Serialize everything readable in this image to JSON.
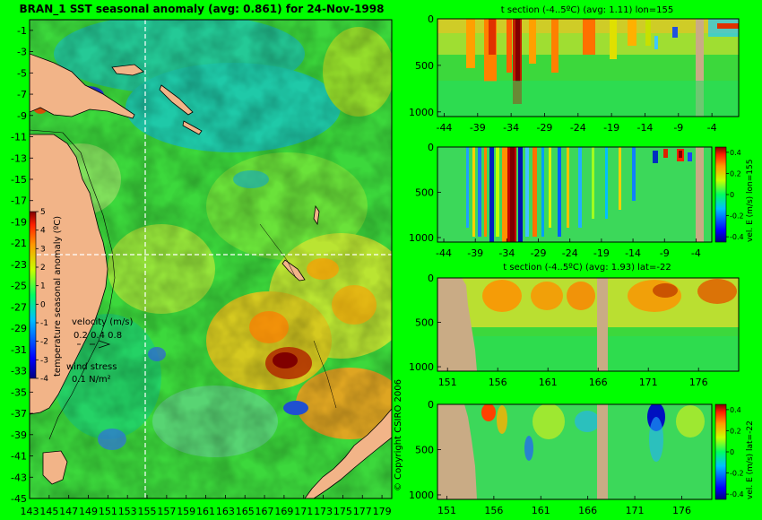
{
  "colors": {
    "page_bg": "#00ff00",
    "land": "#f2b488",
    "section_land": "#c9ab85",
    "ocean_warm": "#ff9900",
    "ocean_cool": "#0077ff",
    "text": "#000000"
  },
  "map": {
    "title": "BRAN_1 SST seasonal anomaly (avg: 0.861) for 24-Nov-1998",
    "lat_ticks": [
      "-1",
      "-3",
      "-5",
      "-7",
      "-9",
      "-11",
      "-13",
      "-15",
      "-17",
      "-19",
      "-21",
      "-23",
      "-25",
      "-27",
      "-29",
      "-31",
      "-33",
      "-35",
      "-37",
      "-39",
      "-41",
      "-43",
      "-45"
    ],
    "lon_ticks": [
      "143",
      "145",
      "147",
      "149",
      "151",
      "153",
      "155",
      "157",
      "159",
      "161",
      "163",
      "165",
      "167",
      "169",
      "171",
      "173",
      "175",
      "177",
      "179"
    ],
    "colorbar_label": "temperature seasonal anomaly (ºC)",
    "colorbar_ticks": [
      "5",
      "4",
      "3",
      "2",
      "1",
      "0",
      "-1",
      "-2",
      "-3",
      "-4"
    ],
    "velocity_label": "velocity (m/s)",
    "velocity_scale": "0.2 0.4 0.8",
    "wind_label": "wind stress",
    "wind_scale": "0.1 N/m²",
    "copyright": "© Copyright CSIRO 2006"
  },
  "sections": [
    {
      "title": "t section (-4..5ºC) (avg: 1.11) lon=155",
      "y_ticks": [
        "0",
        "500",
        "1000"
      ],
      "x_ticks": [
        "-44",
        "-39",
        "-34",
        "-29",
        "-24",
        "-19",
        "-14",
        "-9",
        "-4"
      ]
    },
    {
      "title": "",
      "y_ticks": [
        "0",
        "500",
        "1000"
      ],
      "x_ticks": [
        "-44",
        "-39",
        "-34",
        "-29",
        "-24",
        "-19",
        "-14",
        "-9",
        "-4"
      ],
      "colorbar_label": "vel. E (m/s) lon=155",
      "colorbar_ticks": [
        "0.4",
        "0.2",
        "0",
        "-0.2",
        "-0.4"
      ]
    },
    {
      "title": "t section (-4..5ºC) (avg: 1.93) lat=-22",
      "y_ticks": [
        "0",
        "500",
        "1000"
      ],
      "x_ticks": [
        "151",
        "156",
        "161",
        "166",
        "171",
        "176"
      ]
    },
    {
      "title": "",
      "y_ticks": [
        "0",
        "500",
        "1000"
      ],
      "x_ticks": [
        "151",
        "156",
        "161",
        "166",
        "171",
        "176"
      ],
      "colorbar_label": "vel. E (m/s) lat=-22",
      "colorbar_ticks": [
        "0.4",
        "0.2",
        "0",
        "-0.2",
        "-0.4"
      ]
    }
  ],
  "chart_data": [
    {
      "type": "heatmap",
      "title": "BRAN_1 SST seasonal anomaly (avg: 0.861) for 24-Nov-1998",
      "xlabel": "",
      "ylabel": "",
      "xlim": [
        143,
        180
      ],
      "ylim": [
        -45,
        0
      ],
      "x_ticks": [
        143,
        145,
        147,
        149,
        151,
        153,
        155,
        157,
        159,
        161,
        163,
        165,
        167,
        169,
        171,
        173,
        175,
        177,
        179
      ],
      "y_ticks": [
        -1,
        -3,
        -5,
        -7,
        -9,
        -11,
        -13,
        -15,
        -17,
        -19,
        -21,
        -23,
        -25,
        -27,
        -29,
        -31,
        -33,
        -35,
        -37,
        -39,
        -41,
        -43,
        -45
      ],
      "colorbar": {
        "label": "temperature seasonal anomaly (ºC)",
        "range": [
          -4,
          5
        ]
      },
      "average": 0.861,
      "date": "24-Nov-1998",
      "crosshair": {
        "lon": 155,
        "lat": -22
      },
      "features": [
        {
          "name": "warm anomaly",
          "lon": 170,
          "lat": -33,
          "value": 4
        },
        {
          "name": "cold anomaly",
          "lon": 148,
          "lat": -8,
          "value": -4
        },
        {
          "name": "cold anomaly",
          "lon": 170,
          "lat": -38,
          "value": -3
        }
      ]
    },
    {
      "type": "heatmap",
      "title": "t section (-4..5ºC) (avg: 1.11) lon=155",
      "xlim": [
        -45,
        0
      ],
      "ylim": [
        0,
        1050
      ],
      "x_ticks": [
        -44,
        -39,
        -34,
        -29,
        -24,
        -19,
        -14,
        -9,
        -4
      ],
      "y_ticks": [
        0,
        500,
        1000
      ],
      "color_range": [
        -4,
        5
      ],
      "average": 1.11,
      "features": [
        {
          "name": "warm column",
          "lat": -34,
          "value": 4
        },
        {
          "name": "warm column",
          "lat": -37,
          "value": 3
        },
        {
          "name": "land",
          "lat": -6
        }
      ]
    },
    {
      "type": "heatmap",
      "title": "",
      "xlim": [
        -45,
        0
      ],
      "ylim": [
        0,
        1050
      ],
      "x_ticks": [
        -44,
        -39,
        -34,
        -29,
        -24,
        -19,
        -14,
        -9,
        -4
      ],
      "y_ticks": [
        0,
        500,
        1000
      ],
      "colorbar": {
        "label": "vel. E (m/s) lon=155",
        "range": [
          -0.4,
          0.4
        ],
        "ticks": [
          0.4,
          0.2,
          0,
          -0.2,
          -0.4
        ]
      },
      "features": [
        {
          "name": "eastward jet",
          "lat": -34,
          "value": 0.4
        },
        {
          "name": "westward jet",
          "lat": -36,
          "value": -0.4
        },
        {
          "name": "westward jet",
          "lat": -32,
          "value": -0.3
        }
      ]
    },
    {
      "type": "heatmap",
      "title": "t section (-4..5ºC) (avg: 1.93) lat=-22",
      "xlim": [
        150,
        180
      ],
      "ylim": [
        0,
        1050
      ],
      "x_ticks": [
        151,
        156,
        161,
        166,
        171,
        176
      ],
      "y_ticks": [
        0,
        500,
        1000
      ],
      "color_range": [
        -4,
        5
      ],
      "average": 1.93,
      "features": [
        {
          "name": "land",
          "lon": 151
        },
        {
          "name": "land",
          "lon": 166
        }
      ]
    },
    {
      "type": "heatmap",
      "title": "",
      "xlim": [
        150,
        180
      ],
      "ylim": [
        0,
        1050
      ],
      "x_ticks": [
        151,
        156,
        161,
        166,
        171,
        176
      ],
      "y_ticks": [
        0,
        500,
        1000
      ],
      "colorbar": {
        "label": "vel. E (m/s) lat=-22",
        "range": [
          -0.4,
          0.4
        ],
        "ticks": [
          0.4,
          0.2,
          0,
          -0.2,
          -0.4
        ]
      },
      "features": [
        {
          "name": "westward jet",
          "lon": 172,
          "value": -0.4
        },
        {
          "name": "eastward jet",
          "lon": 155,
          "value": 0.4
        }
      ]
    }
  ]
}
